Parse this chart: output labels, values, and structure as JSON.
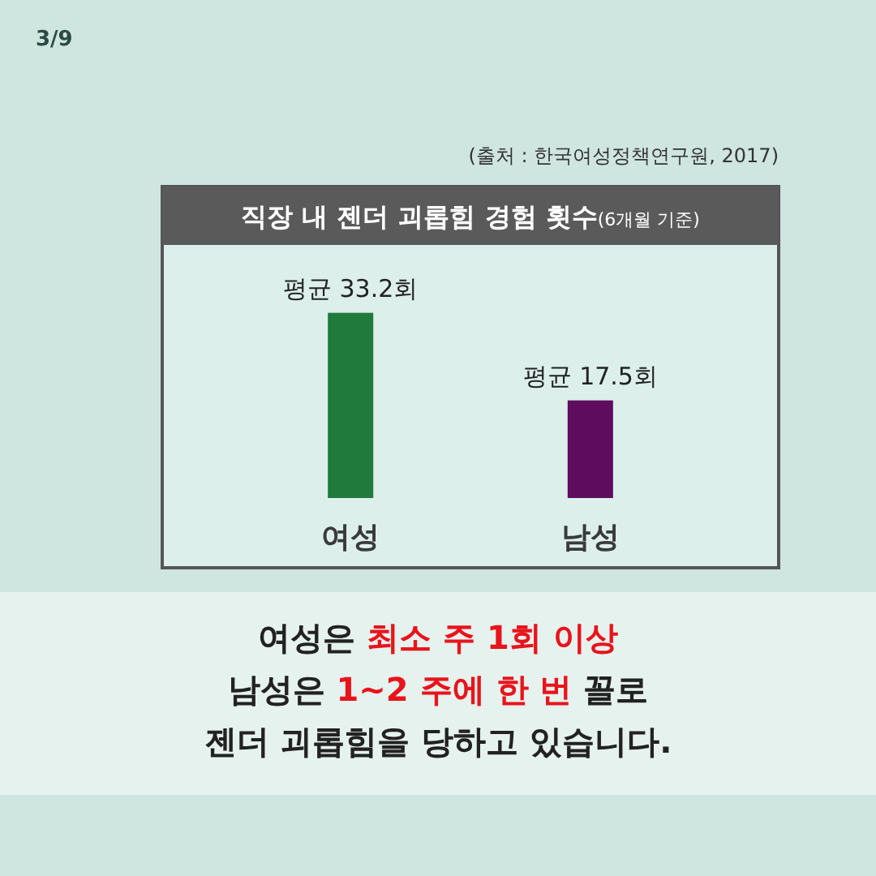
{
  "chart_data": {
    "type": "bar",
    "title": "직장 내 젠더 괴롭힘 경험 횟수",
    "subtitle": "(6개월 기준)",
    "categories": [
      "여성",
      "남성"
    ],
    "values": [
      33.2,
      17.5
    ],
    "colors": [
      "#1f7a3c",
      "#5e0c5e"
    ],
    "value_labels": [
      "평균 33.2회",
      "평균 17.5회"
    ],
    "tick_labels": "x",
    "annotations": [
      "3/9",
      "(출처 : 한국여성정책연구원, 2017)",
      "여성은 ",
      "최소 주 1회 이상",
      "남성은 ",
      "1~2 주에 한 번",
      " 꼴로",
      "젠더 괴롭힘을 당하고 있습니다."
    ]
  }
}
